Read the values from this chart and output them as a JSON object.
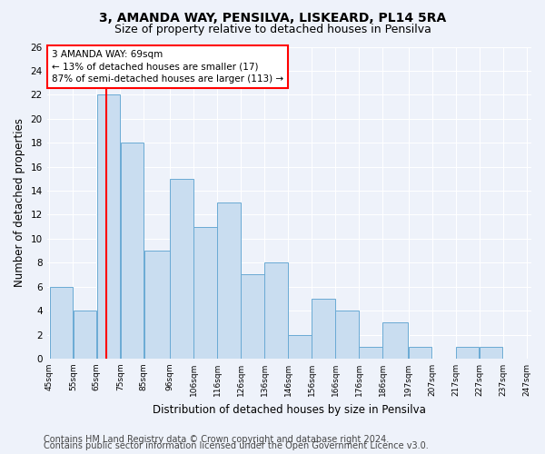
{
  "title_line1": "3, AMANDA WAY, PENSILVA, LISKEARD, PL14 5RA",
  "title_line2": "Size of property relative to detached houses in Pensilva",
  "xlabel": "Distribution of detached houses by size in Pensilva",
  "ylabel": "Number of detached properties",
  "bin_labels": [
    "45sqm",
    "55sqm",
    "65sqm",
    "75sqm",
    "85sqm",
    "96sqm",
    "106sqm",
    "116sqm",
    "126sqm",
    "136sqm",
    "146sqm",
    "156sqm",
    "166sqm",
    "176sqm",
    "186sqm",
    "197sqm",
    "207sqm",
    "217sqm",
    "227sqm",
    "237sqm",
    "247sqm"
  ],
  "bin_edges": [
    45,
    55,
    65,
    75,
    85,
    96,
    106,
    116,
    126,
    136,
    146,
    156,
    166,
    176,
    186,
    197,
    207,
    217,
    227,
    237,
    247
  ],
  "bar_values": [
    6,
    4,
    22,
    18,
    9,
    15,
    11,
    13,
    7,
    8,
    2,
    5,
    4,
    1,
    3,
    1,
    0,
    1,
    1,
    0
  ],
  "bar_color": "#c9ddf0",
  "bar_edge_color": "#6aaad4",
  "red_line_x": 69,
  "ylim": [
    0,
    26
  ],
  "yticks": [
    0,
    2,
    4,
    6,
    8,
    10,
    12,
    14,
    16,
    18,
    20,
    22,
    24,
    26
  ],
  "annotation_text": "3 AMANDA WAY: 69sqm\n← 13% of detached houses are smaller (17)\n87% of semi-detached houses are larger (113) →",
  "annotation_box_color": "white",
  "annotation_box_edge_color": "red",
  "footer_line1": "Contains HM Land Registry data © Crown copyright and database right 2024.",
  "footer_line2": "Contains public sector information licensed under the Open Government Licence v3.0.",
  "background_color": "#eef2fa",
  "grid_color": "#ffffff",
  "title1_fontsize": 10,
  "title2_fontsize": 9,
  "xlabel_fontsize": 8.5,
  "ylabel_fontsize": 8.5,
  "footer_fontsize": 7
}
